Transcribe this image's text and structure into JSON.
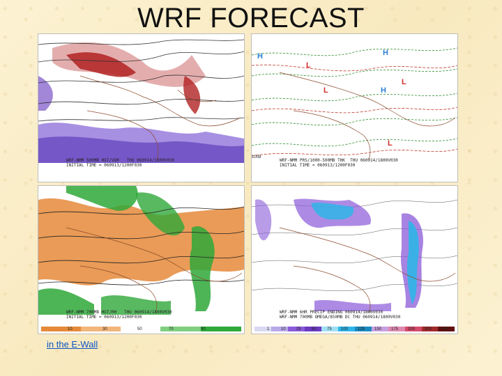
{
  "title": "WRF FORECAST",
  "link": {
    "label": "in the E-Wall"
  },
  "panels": [
    {
      "id": "top-left",
      "caption_line1": "WRF-NMM 500MB HGT/VOR   THU 060914/1800V030",
      "caption_line2": "INITIAL TIME = 060913/1200F030"
    },
    {
      "id": "top-right",
      "caption_line1": "WRF-NMM PRS/1000-500MB THK  THU 060914/1800V030",
      "caption_line2": "INITIAL TIME = 060913/1200F030",
      "pressure_labels": [
        "H",
        "L",
        "L",
        "L",
        "H",
        "H",
        "L"
      ],
      "contour_label": "1008"
    },
    {
      "id": "bottom-left",
      "caption_line1": "WRF-NMM 700MB HGT/RH   THU 060914/1800V030",
      "caption_line2": "INITIAL TIME = 060913/1200F030",
      "colorbar_ticks": [
        "10",
        "30",
        "50",
        "70",
        "90"
      ]
    },
    {
      "id": "bottom-right",
      "caption_line1": "WRF-NMM 6HR PRECIP ENDING 060914/1800V030",
      "caption_line2": "WRF-NMM 700MB OMEGA/850MB DC THU 060914/1800V030",
      "colorbar_ticks": [
        "1",
        "10",
        "25",
        "50",
        "75",
        "100",
        "125",
        "150",
        "175",
        "200",
        "300",
        "400"
      ]
    }
  ],
  "colors": {
    "vorticity_red": "#b22222",
    "vorticity_purple": "#7b52c8",
    "rh_orange": "#e58a3a",
    "rh_green": "#2fa83a",
    "precip_cyan": "#2fb5e8",
    "precip_purple": "#8a5ad8"
  }
}
